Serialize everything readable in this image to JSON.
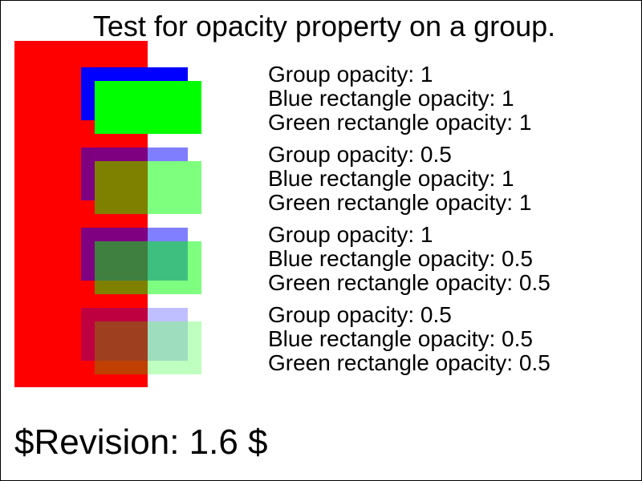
{
  "title": "Test for opacity property on a group.",
  "revision": "$Revision: 1.6 $",
  "colors": {
    "background_rect": "#ff0000",
    "blue_rect": "#0000ff",
    "green_rect": "#00ff00"
  },
  "cases": [
    {
      "group_opacity": 1,
      "blue_opacity": 1,
      "green_opacity": 1,
      "group_label": "Group opacity: 1",
      "blue_label": "Blue rectangle opacity: 1",
      "green_label": "Green rectangle opacity: 1"
    },
    {
      "group_opacity": 0.5,
      "blue_opacity": 1,
      "green_opacity": 1,
      "group_label": "Group opacity: 0.5",
      "blue_label": "Blue rectangle opacity: 1",
      "green_label": "Green rectangle opacity: 1"
    },
    {
      "group_opacity": 1,
      "blue_opacity": 0.5,
      "green_opacity": 0.5,
      "group_label": "Group opacity: 1",
      "blue_label": "Blue rectangle opacity: 0.5",
      "green_label": "Green rectangle opacity: 0.5"
    },
    {
      "group_opacity": 0.5,
      "blue_opacity": 0.5,
      "green_opacity": 0.5,
      "group_label": "Group opacity: 0.5",
      "blue_label": "Blue rectangle opacity: 0.5",
      "green_label": "Green rectangle opacity: 0.5"
    }
  ]
}
